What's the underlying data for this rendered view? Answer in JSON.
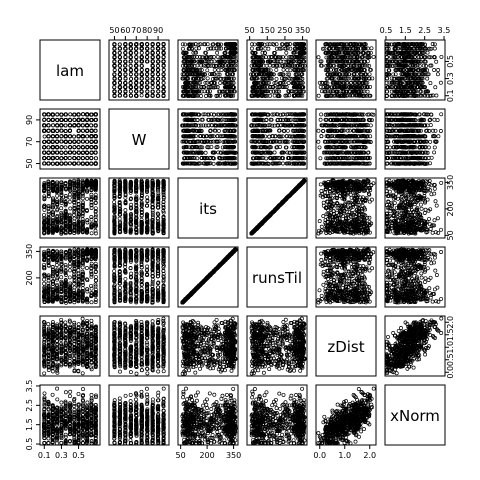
{
  "chart_data": {
    "type": "scatter",
    "kind": "scatterplot-matrix",
    "variables": [
      {
        "name": "lam",
        "range": [
          0.05,
          0.75
        ],
        "ticks": [
          0.1,
          0.3,
          0.5
        ],
        "tick_labels": [
          "0.1",
          "0.3",
          "0.5"
        ],
        "ticks_alt": [
          0.1,
          0.3,
          0.5
        ],
        "tick_labels_alt": [
          "0.1",
          "0.3",
          "0.5"
        ]
      },
      {
        "name": "W",
        "range": [
          45,
          100
        ],
        "ticks": [
          50,
          70,
          90
        ],
        "tick_labels": [
          "50",
          "70",
          "90"
        ],
        "ticks_alt": [
          50,
          60,
          70,
          80,
          90
        ],
        "tick_labels_alt": [
          "50",
          "60",
          "70",
          "80",
          "90"
        ]
      },
      {
        "name": "its",
        "range": [
          35,
          375
        ],
        "ticks": [
          50,
          200,
          350
        ],
        "tick_labels": [
          "50",
          "200",
          "350"
        ],
        "ticks_alt": [
          50,
          200,
          350
        ],
        "tick_labels_alt": [
          "50",
          "200",
          "350"
        ]
      },
      {
        "name": "runsTil",
        "range": [
          35,
          375
        ],
        "ticks": [
          200,
          350
        ],
        "tick_labels": [
          "200",
          "350"
        ],
        "ticks_alt": [
          50,
          150,
          250,
          350
        ],
        "tick_labels_alt": [
          "50",
          "150",
          "250",
          "350"
        ]
      },
      {
        "name": "zDist",
        "range": [
          -0.15,
          2.25
        ],
        "ticks": [
          0.0,
          1.0,
          2.0
        ],
        "tick_labels": [
          "0.0",
          "1.0",
          "2.0"
        ],
        "ticks_alt": [
          0.0,
          0.5,
          1.0,
          1.5,
          2.0
        ],
        "tick_labels_alt": [
          "0.0",
          "0.5",
          "1.0",
          "1.5",
          "2.0"
        ]
      },
      {
        "name": "xNorm",
        "range": [
          0.45,
          3.55
        ],
        "ticks": [
          0.5,
          1.5,
          2.5,
          3.5
        ],
        "tick_labels": [
          "0.5",
          "1.5",
          "2.5",
          "3.5"
        ],
        "ticks_alt": [
          0.5,
          1.5,
          2.5,
          3.5
        ],
        "tick_labels_alt": [
          "0.5",
          "1.5",
          "2.5",
          "3.5"
        ]
      }
    ],
    "description_of_points": "Roughly 2000 open-circle points per panel; lam and W take discrete grid values; its and runsTil are nearly identical (points fall on the diagonal).",
    "grid": false,
    "legend": "none"
  }
}
